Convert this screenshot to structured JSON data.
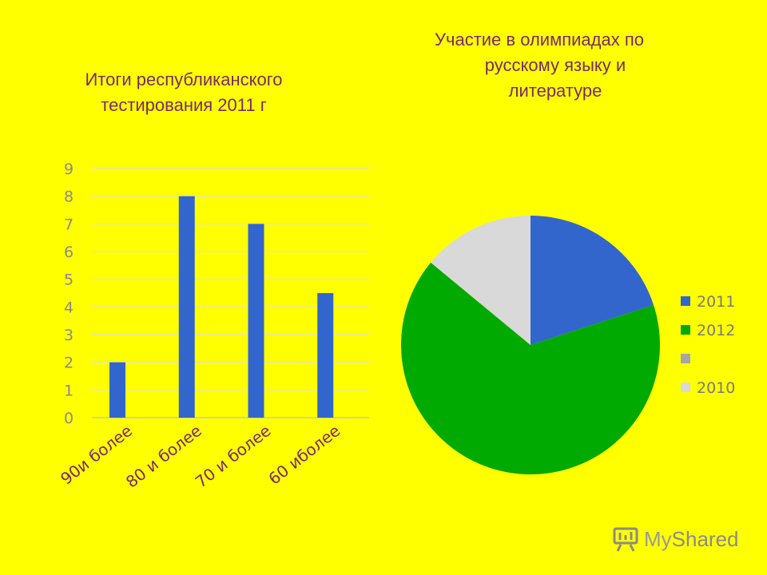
{
  "bar_title": [
    "Итоги республиканского",
    "тестирования 2011 г"
  ],
  "pie_title": [
    "Участие в олимпиадах по",
    "русскому языку и",
    "литературе"
  ],
  "logo": {
    "my": "My",
    "shared": "Shared"
  },
  "colors": {
    "background": "#ffff00",
    "bar": "#3366cc",
    "title": "#7a2a6a",
    "grid": "#e6e6a8"
  },
  "chart_data": [
    {
      "type": "bar",
      "title": "Итоги республиканского тестирования 2011 г",
      "categories": [
        "90и более",
        "80 и более",
        "70 и более",
        "60 иболее"
      ],
      "values": [
        2,
        8,
        7,
        4.5
      ],
      "yticks": [
        "0",
        "1",
        "2",
        "3",
        "4",
        "5",
        "6",
        "7",
        "8",
        "9"
      ],
      "ylim": [
        0,
        9
      ],
      "grid": true,
      "color": "#3366cc"
    },
    {
      "type": "pie",
      "title": "Участие в олимпиадах по русскому языку и литературе",
      "labels": [
        "2011",
        "2012",
        "",
        "2010"
      ],
      "values": [
        20,
        66,
        0,
        14
      ],
      "colors": [
        "#3366cc",
        "#00aa00",
        "#a6a6a6",
        "#d9d9d9"
      ],
      "legend_position": "right"
    }
  ]
}
